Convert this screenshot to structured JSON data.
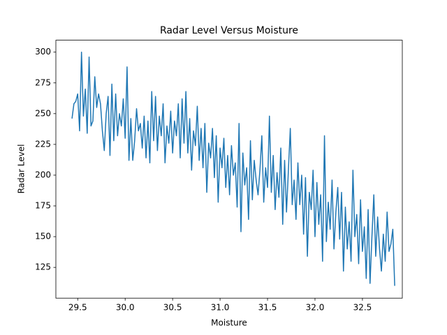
{
  "chart_data": {
    "type": "line",
    "title": "Radar Level Versus Moisture",
    "xlabel": "Moisture",
    "ylabel": "Radar Level",
    "x": [
      29.44,
      29.46,
      29.48,
      29.5,
      29.52,
      29.54,
      29.56,
      29.58,
      29.6,
      29.62,
      29.64,
      29.66,
      29.68,
      29.7,
      29.72,
      29.74,
      29.76,
      29.78,
      29.8,
      29.82,
      29.84,
      29.86,
      29.88,
      29.9,
      29.92,
      29.94,
      29.96,
      29.98,
      30.0,
      30.02,
      30.04,
      30.06,
      30.08,
      30.1,
      30.12,
      30.14,
      30.16,
      30.18,
      30.2,
      30.22,
      30.24,
      30.26,
      30.28,
      30.3,
      30.32,
      30.34,
      30.36,
      30.38,
      30.4,
      30.42,
      30.44,
      30.46,
      30.48,
      30.5,
      30.52,
      30.54,
      30.56,
      30.58,
      30.6,
      30.62,
      30.64,
      30.66,
      30.68,
      30.7,
      30.72,
      30.74,
      30.76,
      30.78,
      30.8,
      30.82,
      30.84,
      30.86,
      30.88,
      30.9,
      30.92,
      30.94,
      30.96,
      30.98,
      31.0,
      31.02,
      31.04,
      31.06,
      31.08,
      31.1,
      31.12,
      31.14,
      31.16,
      31.18,
      31.2,
      31.22,
      31.24,
      31.26,
      31.28,
      31.3,
      31.32,
      31.34,
      31.36,
      31.38,
      31.4,
      31.42,
      31.44,
      31.46,
      31.48,
      31.5,
      31.52,
      31.54,
      31.56,
      31.58,
      31.6,
      31.62,
      31.64,
      31.66,
      31.68,
      31.7,
      31.72,
      31.74,
      31.76,
      31.78,
      31.8,
      31.82,
      31.84,
      31.86,
      31.88,
      31.9,
      31.92,
      31.94,
      31.96,
      31.98,
      32.0,
      32.02,
      32.04,
      32.06,
      32.08,
      32.1,
      32.12,
      32.14,
      32.16,
      32.18,
      32.2,
      32.22,
      32.24,
      32.26,
      32.28,
      32.3,
      32.32,
      32.34,
      32.36,
      32.38,
      32.4,
      32.42,
      32.44,
      32.46,
      32.48,
      32.5,
      32.52,
      32.54,
      32.56,
      32.58,
      32.6,
      32.62,
      32.64,
      32.66,
      32.68,
      32.7,
      32.72,
      32.74,
      32.76,
      32.78,
      32.8,
      32.82,
      32.84
    ],
    "series": [
      {
        "color": "#1f77b4",
        "values": [
          246,
          258,
          260,
          266,
          236,
          300,
          248,
          270,
          234,
          296,
          240,
          244,
          280,
          255,
          266,
          258,
          236,
          220,
          250,
          264,
          216,
          274,
          228,
          266,
          232,
          250,
          240,
          262,
          230,
          288,
          212,
          246,
          212,
          228,
          254,
          236,
          242,
          222,
          248,
          214,
          244,
          210,
          268,
          228,
          264,
          220,
          248,
          232,
          258,
          210,
          240,
          226,
          252,
          218,
          244,
          232,
          258,
          214,
          262,
          226,
          268,
          218,
          246,
          204,
          236,
          224,
          256,
          212,
          238,
          206,
          242,
          186,
          226,
          214,
          238,
          198,
          232,
          178,
          222,
          206,
          230,
          190,
          216,
          184,
          224,
          200,
          210,
          174,
          242,
          154,
          218,
          192,
          206,
          164,
          228,
          180,
          212,
          196,
          184,
          204,
          232,
          178,
          206,
          190,
          248,
          186,
          216,
          172,
          202,
          182,
          222,
          160,
          212,
          170,
          204,
          238,
          176,
          196,
          164,
          210,
          176,
          200,
          152,
          198,
          134,
          186,
          172,
          204,
          150,
          194,
          160,
          184,
          130,
          232,
          146,
          178,
          156,
          196,
          140,
          170,
          190,
          148,
          186,
          122,
          174,
          140,
          162,
          130,
          204,
          150,
          168,
          128,
          180,
          138,
          158,
          116,
          172,
          112,
          150,
          184,
          134,
          166,
          140,
          122,
          152,
          130,
          170,
          138,
          144,
          156,
          110
        ]
      }
    ],
    "xlim": [
      29.27,
      32.92
    ],
    "xticks": [
      29.5,
      {
        "value": 30,
        "label": "30.0"
      },
      30.5,
      {
        "value": 31,
        "label": "31.0"
      },
      31.5,
      {
        "value": 32,
        "label": "32.0"
      },
      32.5
    ],
    "ylim": [
      100,
      309.7
    ],
    "yticks": [
      125,
      150,
      175,
      200,
      225,
      250,
      275,
      300
    ],
    "grid": false
  }
}
